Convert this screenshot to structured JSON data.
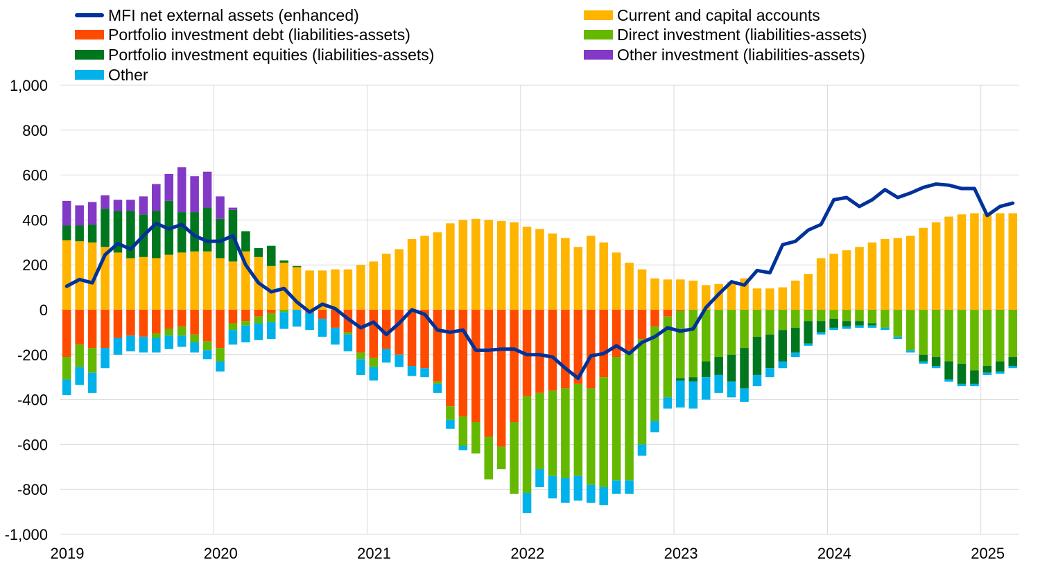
{
  "chart_data": {
    "type": "bar",
    "stacked": true,
    "title": "",
    "xlabel": "",
    "ylabel": "",
    "ylim": [
      -1000,
      1000
    ],
    "yticks": [
      1000,
      800,
      600,
      400,
      200,
      0,
      -200,
      -400,
      -600,
      -800,
      -1000
    ],
    "ytick_labels": [
      "1,000",
      "800",
      "600",
      "400",
      "200",
      "0",
      "-200",
      "-400",
      "-600",
      "-800",
      "-1,000"
    ],
    "xtick_labels": [
      "2019",
      "2020",
      "2021",
      "2022",
      "2023",
      "2024",
      "2025"
    ],
    "grid": "horizontal",
    "legend_position": "top",
    "period": "monthly, 2019-01 to 2025-03",
    "categories": [
      "2019-01",
      "2019-02",
      "2019-03",
      "2019-04",
      "2019-05",
      "2019-06",
      "2019-07",
      "2019-08",
      "2019-09",
      "2019-10",
      "2019-11",
      "2019-12",
      "2020-01",
      "2020-02",
      "2020-03",
      "2020-04",
      "2020-05",
      "2020-06",
      "2020-07",
      "2020-08",
      "2020-09",
      "2020-10",
      "2020-11",
      "2020-12",
      "2021-01",
      "2021-02",
      "2021-03",
      "2021-04",
      "2021-05",
      "2021-06",
      "2021-07",
      "2021-08",
      "2021-09",
      "2021-10",
      "2021-11",
      "2021-12",
      "2022-01",
      "2022-02",
      "2022-03",
      "2022-04",
      "2022-05",
      "2022-06",
      "2022-07",
      "2022-08",
      "2022-09",
      "2022-10",
      "2022-11",
      "2022-12",
      "2023-01",
      "2023-02",
      "2023-03",
      "2023-04",
      "2023-05",
      "2023-06",
      "2023-07",
      "2023-08",
      "2023-09",
      "2023-10",
      "2023-11",
      "2023-12",
      "2024-01",
      "2024-02",
      "2024-03",
      "2024-04",
      "2024-05",
      "2024-06",
      "2024-07",
      "2024-08",
      "2024-09",
      "2024-10",
      "2024-11",
      "2024-12",
      "2025-01",
      "2025-02",
      "2025-03"
    ],
    "series": [
      {
        "name": "Current and capital accounts",
        "type": "bar",
        "color": "#FFB400",
        "values": [
          310,
          305,
          300,
          280,
          255,
          230,
          235,
          230,
          245,
          255,
          260,
          260,
          230,
          215,
          260,
          235,
          195,
          210,
          190,
          175,
          175,
          180,
          180,
          200,
          215,
          250,
          270,
          315,
          330,
          345,
          385,
          400,
          405,
          400,
          395,
          390,
          370,
          360,
          340,
          320,
          280,
          330,
          300,
          255,
          210,
          180,
          140,
          135,
          135,
          130,
          110,
          115,
          125,
          140,
          95,
          95,
          100,
          130,
          160,
          230,
          250,
          265,
          280,
          300,
          315,
          320,
          330,
          365,
          390,
          415,
          425,
          430,
          430,
          430,
          430
        ]
      },
      {
        "name": "Portfolio investment debt (liabilities-assets)",
        "type": "bar",
        "color": "#FF4B00",
        "values": [
          -210,
          -155,
          -170,
          -170,
          -125,
          -115,
          -120,
          -105,
          -85,
          -75,
          -110,
          -140,
          -170,
          -60,
          -50,
          -30,
          -15,
          0,
          0,
          -15,
          -40,
          -80,
          -100,
          -190,
          -215,
          -175,
          -200,
          -250,
          -260,
          -320,
          -430,
          -475,
          -500,
          -565,
          -610,
          -500,
          -385,
          -370,
          -360,
          -350,
          -330,
          -350,
          -300,
          -210,
          -180,
          -130,
          -75,
          -30,
          -5,
          0,
          0,
          0,
          0,
          0,
          0,
          0,
          0,
          0,
          0,
          0,
          0,
          0,
          0,
          0,
          0,
          0,
          0,
          0,
          0,
          0,
          0,
          0,
          0,
          0,
          0
        ]
      },
      {
        "name": "Direct investment (liabilities-assets)",
        "type": "bar",
        "color": "#65B800",
        "values": [
          -100,
          -100,
          -110,
          0,
          0,
          0,
          0,
          -20,
          -30,
          -40,
          -35,
          -40,
          -60,
          -30,
          -20,
          -30,
          -40,
          -10,
          0,
          0,
          0,
          0,
          -10,
          -30,
          -40,
          0,
          0,
          0,
          0,
          -10,
          -60,
          -130,
          -140,
          -190,
          -100,
          -320,
          -430,
          -340,
          -380,
          -400,
          -410,
          -430,
          -490,
          -550,
          -580,
          -470,
          -420,
          -360,
          -300,
          -300,
          -230,
          -210,
          -200,
          -170,
          -120,
          -110,
          -90,
          -80,
          -50,
          -50,
          -40,
          -50,
          -50,
          -60,
          -80,
          -120,
          -180,
          -200,
          -210,
          -230,
          -240,
          -270,
          -250,
          -230,
          -210
        ]
      },
      {
        "name": "Portfolio investment equities (liabilities-assets)",
        "type": "bar",
        "color": "#00771E",
        "values": [
          65,
          70,
          80,
          170,
          185,
          210,
          190,
          210,
          240,
          180,
          175,
          195,
          175,
          230,
          90,
          40,
          90,
          10,
          5,
          0,
          0,
          0,
          0,
          0,
          0,
          0,
          0,
          0,
          0,
          0,
          0,
          0,
          0,
          0,
          0,
          0,
          0,
          0,
          0,
          0,
          0,
          0,
          0,
          0,
          0,
          0,
          0,
          0,
          -10,
          -20,
          -70,
          -80,
          -120,
          -180,
          -170,
          -150,
          -140,
          -110,
          -100,
          -50,
          -40,
          -25,
          -20,
          -10,
          0,
          0,
          0,
          -30,
          -40,
          -80,
          -90,
          -60,
          -30,
          -45,
          -40
        ]
      },
      {
        "name": "Other investment (liabilities-assets)",
        "type": "bar",
        "color": "#8139C6",
        "values": [
          110,
          90,
          100,
          60,
          50,
          50,
          80,
          120,
          120,
          200,
          160,
          160,
          100,
          10,
          0,
          0,
          0,
          0,
          0,
          0,
          0,
          0,
          0,
          0,
          0,
          0,
          0,
          0,
          0,
          0,
          0,
          0,
          0,
          0,
          0,
          0,
          0,
          0,
          0,
          0,
          0,
          0,
          0,
          0,
          0,
          0,
          0,
          0,
          0,
          0,
          0,
          0,
          0,
          0,
          0,
          0,
          0,
          0,
          0,
          0,
          0,
          0,
          0,
          0,
          0,
          0,
          0,
          0,
          0,
          0,
          0,
          0,
          0,
          0,
          0
        ]
      },
      {
        "name": "Other",
        "type": "bar",
        "color": "#00B1EA",
        "values": [
          -70,
          -80,
          -90,
          -90,
          -75,
          -70,
          -70,
          -65,
          -60,
          -50,
          -45,
          -40,
          -45,
          -65,
          -75,
          -75,
          -75,
          -75,
          -75,
          -75,
          -80,
          -75,
          -75,
          -70,
          -60,
          -60,
          -55,
          -45,
          -40,
          -40,
          -40,
          -20,
          0,
          0,
          0,
          0,
          -90,
          -80,
          -100,
          -110,
          -110,
          -80,
          -80,
          -60,
          -60,
          -50,
          -50,
          -50,
          -120,
          -120,
          -100,
          -80,
          -70,
          -60,
          -50,
          -40,
          -30,
          -20,
          -10,
          -10,
          -10,
          -10,
          -10,
          -10,
          -10,
          -10,
          -10,
          -10,
          -10,
          -10,
          -10,
          -10,
          -10,
          -10,
          -10
        ]
      }
    ],
    "line": {
      "name": "MFI net external assets (enhanced)",
      "type": "line",
      "color": "#003299",
      "values": [
        105,
        135,
        120,
        245,
        295,
        270,
        330,
        385,
        360,
        380,
        330,
        305,
        305,
        330,
        200,
        120,
        80,
        95,
        35,
        -10,
        25,
        5,
        -40,
        -80,
        -55,
        -110,
        -60,
        0,
        -20,
        -90,
        -100,
        -90,
        -180,
        -180,
        -175,
        -175,
        -200,
        -200,
        -210,
        -260,
        -305,
        -205,
        -195,
        -160,
        -195,
        -145,
        -120,
        -80,
        -95,
        -85,
        10,
        70,
        125,
        110,
        175,
        165,
        290,
        305,
        355,
        380,
        490,
        500,
        460,
        490,
        535,
        500,
        520,
        545,
        560,
        555,
        540,
        540,
        420,
        460,
        475
      ]
    }
  },
  "legend": {
    "line_label": "MFI net external assets (enhanced)",
    "current_label": "Current and capital accounts",
    "pid_label": "Portfolio investment debt (liabilities-assets)",
    "di_label": "Direct investment (liabilities-assets)",
    "pie_label": "Portfolio investment equities (liabilities-assets)",
    "oi_label": "Other investment (liabilities-assets)",
    "other_label": "Other"
  }
}
